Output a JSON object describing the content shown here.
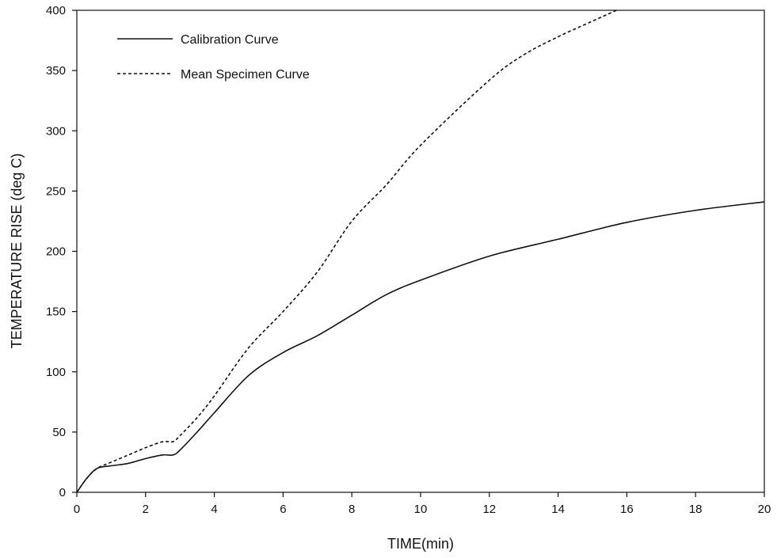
{
  "chart_data": {
    "type": "line",
    "title": "",
    "xlabel": "TIME(min)",
    "ylabel": "TEMPERATURE RISE (deg C)",
    "xlim": [
      0,
      20
    ],
    "ylim": [
      0,
      400
    ],
    "xticks": [
      0,
      2,
      4,
      6,
      8,
      10,
      12,
      14,
      16,
      18,
      20
    ],
    "yticks": [
      0,
      50,
      100,
      150,
      200,
      250,
      300,
      350,
      400
    ],
    "grid": false,
    "legend_position": "top-left",
    "series": [
      {
        "name": "Calibration Curve",
        "style": "solid",
        "color": "#111111",
        "x": [
          0,
          0.3,
          0.6,
          1,
          1.5,
          2,
          2.5,
          2.8,
          3,
          3.5,
          4,
          5,
          6,
          7,
          8,
          9,
          10,
          12,
          14,
          16,
          18,
          20
        ],
        "y": [
          0,
          12,
          20,
          22,
          24,
          28,
          31,
          31,
          35,
          50,
          66,
          97,
          116,
          130,
          147,
          164,
          176,
          196,
          210,
          224,
          234,
          241
        ]
      },
      {
        "name": "Mean Specimen Curve",
        "style": "dashed",
        "color": "#111111",
        "x": [
          0,
          0.3,
          0.6,
          1,
          1.5,
          2,
          2.5,
          2.8,
          3,
          3.5,
          4,
          5,
          6,
          7,
          8,
          9,
          10,
          12,
          13,
          14,
          15,
          15.7
        ],
        "y": [
          0,
          12,
          20,
          25,
          31,
          37,
          42,
          42,
          47,
          62,
          80,
          120,
          150,
          183,
          225,
          255,
          288,
          342,
          363,
          378,
          391,
          400
        ]
      }
    ]
  }
}
